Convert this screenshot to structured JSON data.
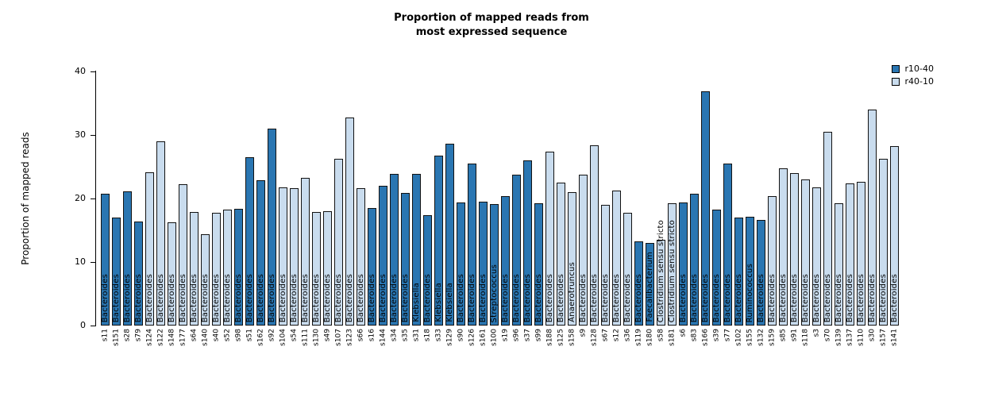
{
  "chart_data": {
    "type": "bar",
    "title_lines": [
      "Proportion of mapped reads from",
      "most expressed sequence"
    ],
    "ylabel": "Proportion of mapped reads",
    "ylim": [
      0,
      40
    ],
    "yticks": [
      0,
      10,
      20,
      30,
      40
    ],
    "grid": false,
    "legend_position": "top-right",
    "legend": [
      {
        "label": "r10-40",
        "color": "#2a76b2"
      },
      {
        "label": "r40-10",
        "color": "#c9dcee"
      }
    ],
    "bars": [
      {
        "sample": "s11",
        "value": 20.7,
        "taxon": "Bacteroides",
        "group": "r10-40"
      },
      {
        "sample": "s151",
        "value": 17.0,
        "taxon": "Bacteroides",
        "group": "r10-40"
      },
      {
        "sample": "s28",
        "value": 21.1,
        "taxon": "Bacteroides",
        "group": "r10-40"
      },
      {
        "sample": "s79",
        "value": 16.4,
        "taxon": "Bacteroides",
        "group": "r10-40"
      },
      {
        "sample": "s124",
        "value": 24.1,
        "taxon": "Bacteroides",
        "group": "r40-10"
      },
      {
        "sample": "s122",
        "value": 29.0,
        "taxon": "Bacteroides",
        "group": "r40-10"
      },
      {
        "sample": "s148",
        "value": 16.2,
        "taxon": "Bacteroides",
        "group": "r40-10"
      },
      {
        "sample": "s177",
        "value": 22.2,
        "taxon": "Bacteroides",
        "group": "r40-10"
      },
      {
        "sample": "s64",
        "value": 17.9,
        "taxon": "Bacteroides",
        "group": "r40-10"
      },
      {
        "sample": "s140",
        "value": 14.4,
        "taxon": "Bacteroides",
        "group": "r40-10"
      },
      {
        "sample": "s40",
        "value": 17.7,
        "taxon": "Bacteroides",
        "group": "r40-10"
      },
      {
        "sample": "s52",
        "value": 18.2,
        "taxon": "Bacteroides",
        "group": "r40-10"
      },
      {
        "sample": "s98",
        "value": 18.4,
        "taxon": "Bacteroides",
        "group": "r10-40"
      },
      {
        "sample": "s51",
        "value": 26.5,
        "taxon": "Bacteroides",
        "group": "r10-40"
      },
      {
        "sample": "s162",
        "value": 22.9,
        "taxon": "Bacteroides",
        "group": "r10-40"
      },
      {
        "sample": "s92",
        "value": 31.0,
        "taxon": "Bacteroides",
        "group": "r10-40"
      },
      {
        "sample": "s104",
        "value": 21.8,
        "taxon": "Bacteroides",
        "group": "r40-10"
      },
      {
        "sample": "s54",
        "value": 21.6,
        "taxon": "Bacteroides",
        "group": "r40-10"
      },
      {
        "sample": "s111",
        "value": 23.2,
        "taxon": "Bacteroides",
        "group": "r40-10"
      },
      {
        "sample": "s130",
        "value": 17.9,
        "taxon": "Bacteroides",
        "group": "r40-10"
      },
      {
        "sample": "s49",
        "value": 18.0,
        "taxon": "Bacteroides",
        "group": "r40-10"
      },
      {
        "sample": "s107",
        "value": 26.2,
        "taxon": "Bacteroides",
        "group": "r40-10"
      },
      {
        "sample": "s123",
        "value": 32.8,
        "taxon": "Bacteroides",
        "group": "r40-10"
      },
      {
        "sample": "s66",
        "value": 21.6,
        "taxon": "Bacteroides",
        "group": "r40-10"
      },
      {
        "sample": "s16",
        "value": 18.5,
        "taxon": "Bacteroides",
        "group": "r10-40"
      },
      {
        "sample": "s144",
        "value": 22.0,
        "taxon": "Bacteroides",
        "group": "r10-40"
      },
      {
        "sample": "s34",
        "value": 23.9,
        "taxon": "Bacteroides",
        "group": "r10-40"
      },
      {
        "sample": "s35",
        "value": 20.9,
        "taxon": "Bacteroides",
        "group": "r10-40"
      },
      {
        "sample": "s31",
        "value": 23.9,
        "taxon": "Klebsiella",
        "group": "r10-40"
      },
      {
        "sample": "s18",
        "value": 17.4,
        "taxon": "Bacteroides",
        "group": "r10-40"
      },
      {
        "sample": "s33",
        "value": 26.7,
        "taxon": "Klebsiella",
        "group": "r10-40"
      },
      {
        "sample": "s129",
        "value": 28.6,
        "taxon": "Klebsiella",
        "group": "r10-40"
      },
      {
        "sample": "s90",
        "value": 19.4,
        "taxon": "Bacteroides",
        "group": "r10-40"
      },
      {
        "sample": "s126",
        "value": 25.5,
        "taxon": "Bacteroides",
        "group": "r10-40"
      },
      {
        "sample": "s161",
        "value": 19.5,
        "taxon": "Bacteroides",
        "group": "r10-40"
      },
      {
        "sample": "s100",
        "value": 19.1,
        "taxon": "Streptococcus",
        "group": "r10-40"
      },
      {
        "sample": "s19",
        "value": 20.4,
        "taxon": "Bacteroides",
        "group": "r10-40"
      },
      {
        "sample": "s96",
        "value": 23.8,
        "taxon": "Bacteroides",
        "group": "r10-40"
      },
      {
        "sample": "s37",
        "value": 26.0,
        "taxon": "Bacteroides",
        "group": "r10-40"
      },
      {
        "sample": "s99",
        "value": 19.3,
        "taxon": "Bacteroides",
        "group": "r10-40"
      },
      {
        "sample": "s188",
        "value": 27.4,
        "taxon": "Bacteroides",
        "group": "r40-10"
      },
      {
        "sample": "s125",
        "value": 22.5,
        "taxon": "Bacteroides",
        "group": "r40-10"
      },
      {
        "sample": "s158",
        "value": 21.0,
        "taxon": "Anaerotruncus",
        "group": "r40-10"
      },
      {
        "sample": "s9",
        "value": 23.8,
        "taxon": "Bacteroides",
        "group": "r40-10"
      },
      {
        "sample": "s128",
        "value": 28.4,
        "taxon": "Bacteroides",
        "group": "r40-10"
      },
      {
        "sample": "s67",
        "value": 19.0,
        "taxon": "Bacteroides",
        "group": "r40-10"
      },
      {
        "sample": "s12",
        "value": 21.2,
        "taxon": "Bacteroides",
        "group": "r40-10"
      },
      {
        "sample": "s36",
        "value": 17.8,
        "taxon": "Bacteroides",
        "group": "r40-10"
      },
      {
        "sample": "s119",
        "value": 13.2,
        "taxon": "Bacteroides",
        "group": "r10-40"
      },
      {
        "sample": "s180",
        "value": 13.0,
        "taxon": "Faecalibacterium",
        "group": "r10-40"
      },
      {
        "sample": "s58",
        "value": 13.5,
        "taxon": "Clostridium sensu stricto",
        "group": "r40-10"
      },
      {
        "sample": "s181",
        "value": 19.3,
        "taxon": "Clostridium sensu stricto",
        "group": "r40-10"
      },
      {
        "sample": "s6",
        "value": 19.4,
        "taxon": "Bacteroides",
        "group": "r10-40"
      },
      {
        "sample": "s83",
        "value": 20.7,
        "taxon": "Bacteroides",
        "group": "r10-40"
      },
      {
        "sample": "s166",
        "value": 36.9,
        "taxon": "Bacteroides",
        "group": "r10-40"
      },
      {
        "sample": "s39",
        "value": 18.3,
        "taxon": "Bacteroides",
        "group": "r10-40"
      },
      {
        "sample": "s77",
        "value": 25.5,
        "taxon": "Bacteroides",
        "group": "r10-40"
      },
      {
        "sample": "s102",
        "value": 17.0,
        "taxon": "Bacteroides",
        "group": "r10-40"
      },
      {
        "sample": "s155",
        "value": 17.1,
        "taxon": "Ruminococcus",
        "group": "r10-40"
      },
      {
        "sample": "s132",
        "value": 16.6,
        "taxon": "Bacteroides",
        "group": "r10-40"
      },
      {
        "sample": "s159",
        "value": 20.4,
        "taxon": "Bacteroides",
        "group": "r40-10"
      },
      {
        "sample": "s85",
        "value": 24.8,
        "taxon": "Bacteroides",
        "group": "r40-10"
      },
      {
        "sample": "s91",
        "value": 24.0,
        "taxon": "Bacteroides",
        "group": "r40-10"
      },
      {
        "sample": "s118",
        "value": 23.0,
        "taxon": "Bacteroides",
        "group": "r40-10"
      },
      {
        "sample": "s3",
        "value": 21.8,
        "taxon": "Bacteroides",
        "group": "r40-10"
      },
      {
        "sample": "s70",
        "value": 30.5,
        "taxon": "Bacteroides",
        "group": "r40-10"
      },
      {
        "sample": "s139",
        "value": 19.2,
        "taxon": "Bacteroides",
        "group": "r40-10"
      },
      {
        "sample": "s137",
        "value": 22.4,
        "taxon": "Bacteroides",
        "group": "r40-10"
      },
      {
        "sample": "s110",
        "value": 22.6,
        "taxon": "Bacteroides",
        "group": "r40-10"
      },
      {
        "sample": "s30",
        "value": 34.0,
        "taxon": "Bacteroides",
        "group": "r40-10"
      },
      {
        "sample": "s157",
        "value": 26.3,
        "taxon": "Bacteroides",
        "group": "r40-10"
      },
      {
        "sample": "s141",
        "value": 28.3,
        "taxon": "Bacteroides",
        "group": "r40-10"
      }
    ]
  }
}
